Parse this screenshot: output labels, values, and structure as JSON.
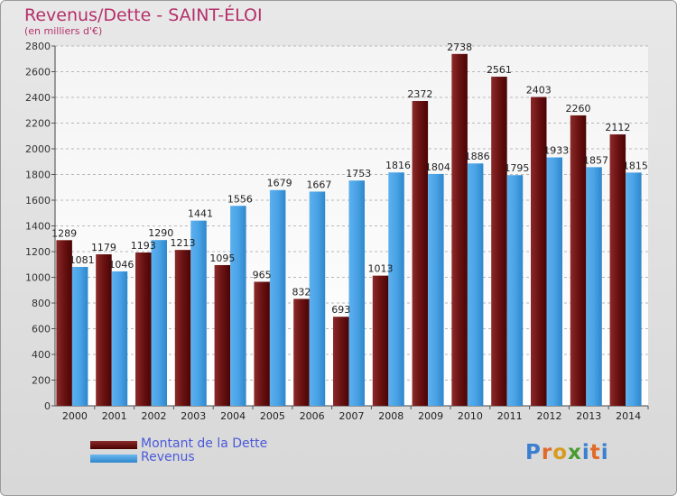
{
  "title": "Revenus/Dette - SAINT-ÉLOI",
  "subtitle": "(en milliers d'€)",
  "legend": {
    "debt_label": "Montant de la Dette",
    "revenue_label": "Revenus"
  },
  "brand": "Proxiti",
  "colors": {
    "debt": "#6a1010",
    "revenue": "#4aa3e6",
    "title": "#b5306a",
    "legend_text": "#4a5ad8"
  },
  "chart_data": {
    "type": "bar",
    "categories": [
      "2000",
      "2001",
      "2002",
      "2003",
      "2004",
      "2005",
      "2006",
      "2007",
      "2008",
      "2009",
      "2010",
      "2011",
      "2012",
      "2013",
      "2014"
    ],
    "series": [
      {
        "name": "Montant de la Dette",
        "values": [
          1289,
          1179,
          1193,
          1213,
          1095,
          965,
          832,
          693,
          1013,
          2372,
          2738,
          2561,
          2403,
          2260,
          2112
        ]
      },
      {
        "name": "Revenus",
        "values": [
          1081,
          1046,
          1290,
          1441,
          1556,
          1679,
          1667,
          1753,
          1816,
          1804,
          1886,
          1795,
          1933,
          1857,
          1815
        ]
      }
    ],
    "ylim": [
      0,
      2800
    ],
    "yticks": [
      0,
      200,
      400,
      600,
      800,
      1000,
      1200,
      1400,
      1600,
      1800,
      2000,
      2200,
      2400,
      2600,
      2800
    ],
    "grid": true,
    "legend_position": "bottom-left"
  }
}
